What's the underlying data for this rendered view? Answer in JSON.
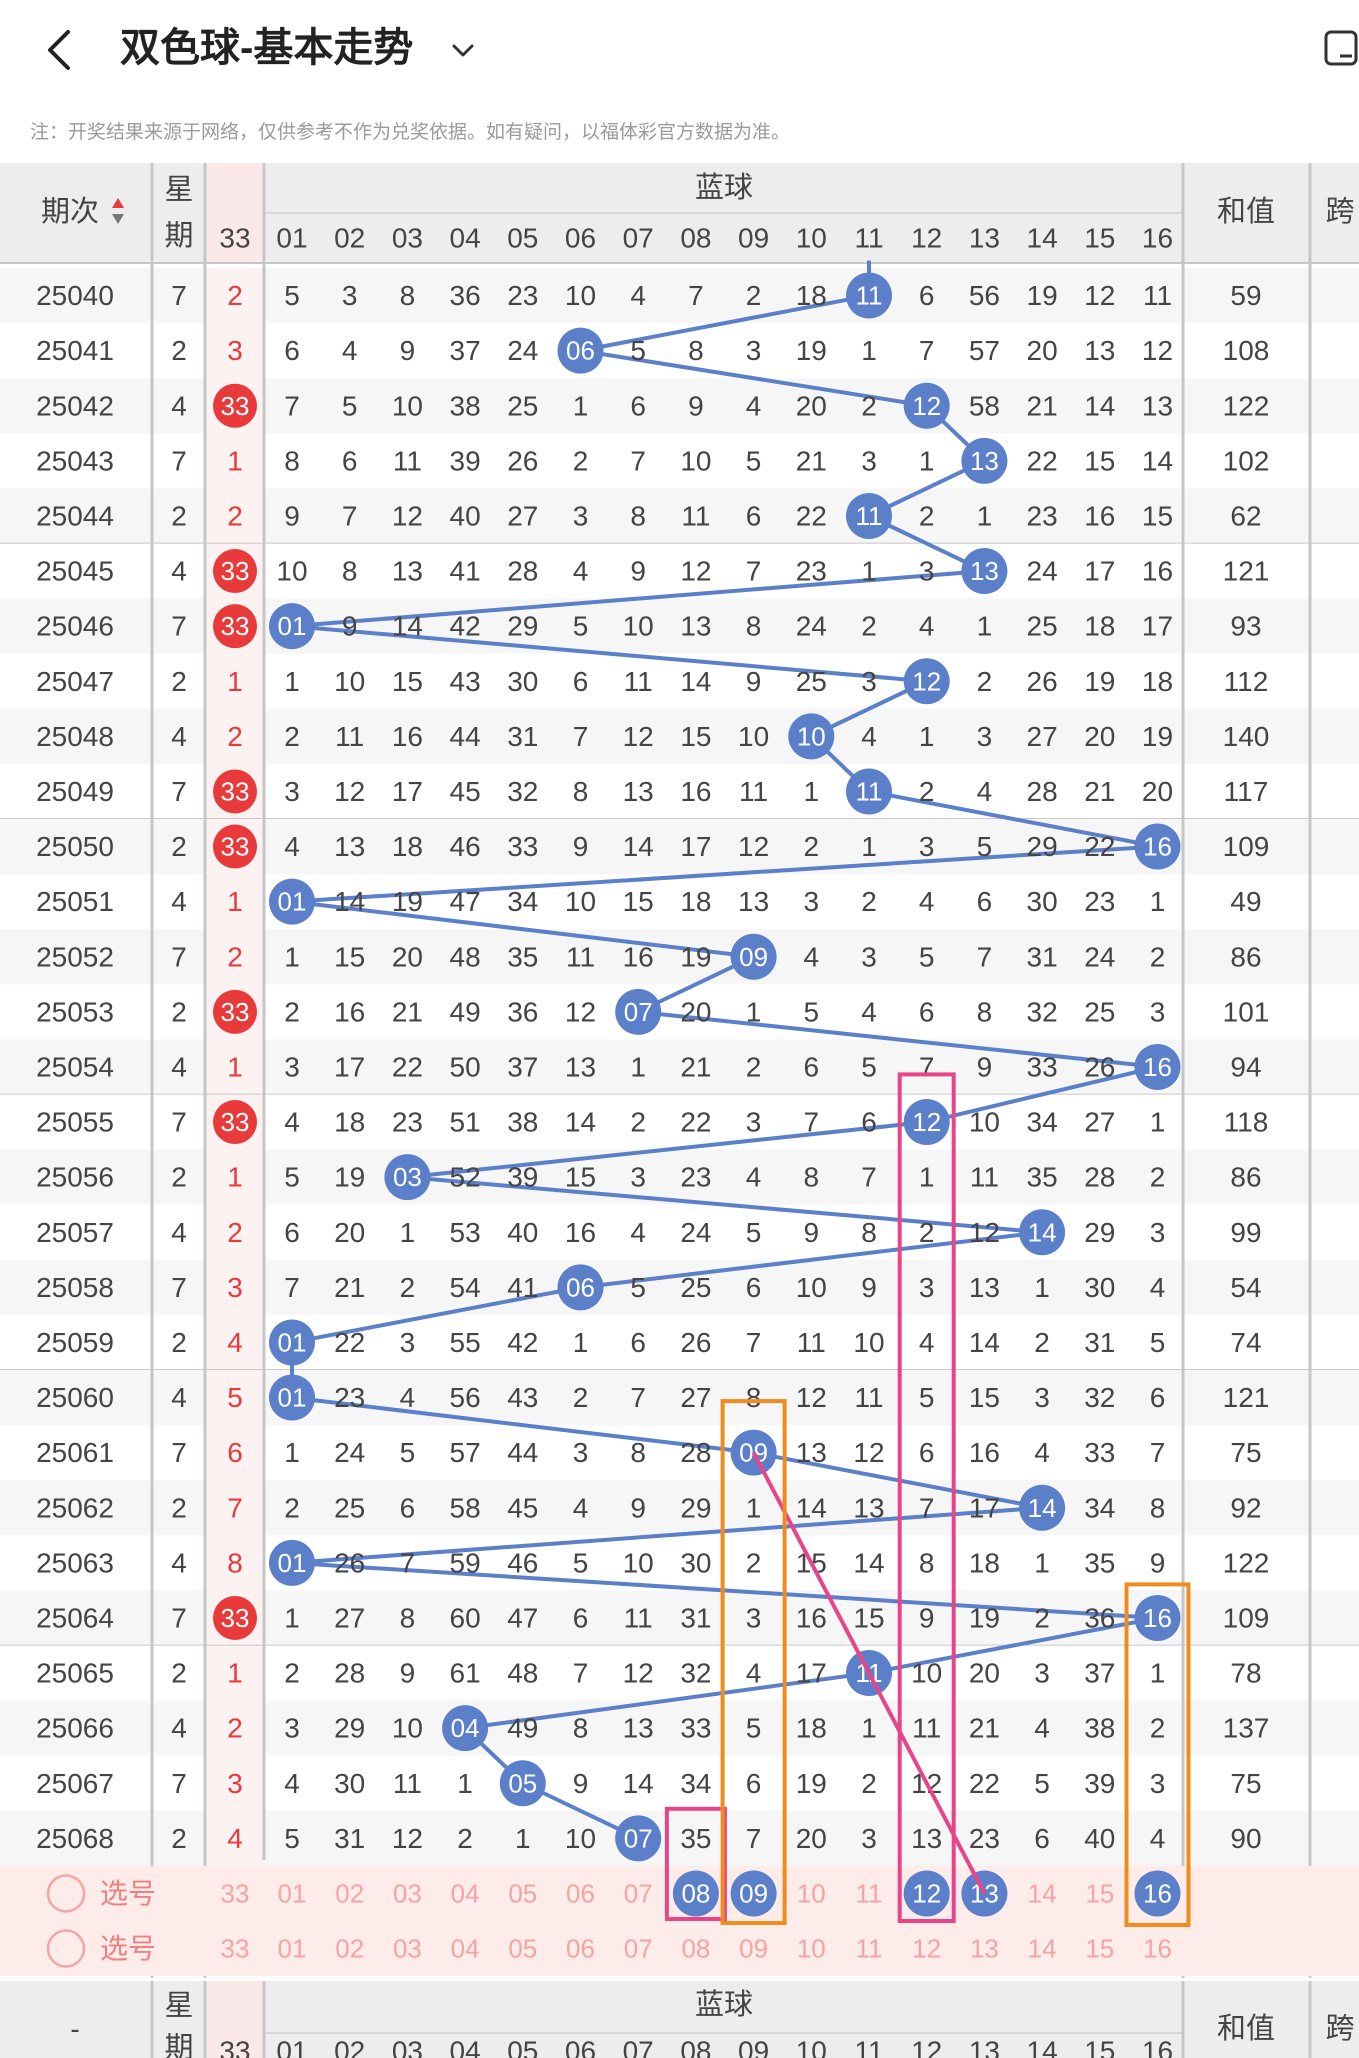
{
  "header": {
    "title": "双色球-基本走势"
  },
  "notice": "注：开奖结果来源于网络，仅供参考不作为兑奖依据。如有疑问，以福体彩官方数据为准。",
  "table": {
    "col_period": "期次",
    "col_week": "星期",
    "col_33": "33",
    "blue_title": "蓝球",
    "col_sum": "和值",
    "col_next": "跨",
    "blue_headers": [
      "01",
      "02",
      "03",
      "04",
      "05",
      "06",
      "07",
      "08",
      "09",
      "10",
      "11",
      "12",
      "13",
      "14",
      "15",
      "16"
    ],
    "footer_period": "-",
    "select_label": "选号"
  },
  "rows": [
    {
      "period": "25040",
      "week": "7",
      "c33": "2",
      "hit33": false,
      "cells": [
        "5",
        "3",
        "8",
        "36",
        "23",
        "10",
        "4",
        "7",
        "2",
        "18",
        "11",
        "6",
        "56",
        "19",
        "12",
        "11"
      ],
      "blue": 11,
      "sum": "59"
    },
    {
      "period": "25041",
      "week": "2",
      "c33": "3",
      "hit33": false,
      "cells": [
        "6",
        "4",
        "9",
        "37",
        "24",
        "06",
        "5",
        "8",
        "3",
        "19",
        "1",
        "7",
        "57",
        "20",
        "13",
        "12"
      ],
      "blue": 6,
      "sum": "108"
    },
    {
      "period": "25042",
      "week": "4",
      "c33": "33",
      "hit33": true,
      "cells": [
        "7",
        "5",
        "10",
        "38",
        "25",
        "1",
        "6",
        "9",
        "4",
        "20",
        "2",
        "12",
        "58",
        "21",
        "14",
        "13"
      ],
      "blue": 12,
      "sum": "122"
    },
    {
      "period": "25043",
      "week": "7",
      "c33": "1",
      "hit33": false,
      "cells": [
        "8",
        "6",
        "11",
        "39",
        "26",
        "2",
        "7",
        "10",
        "5",
        "21",
        "3",
        "1",
        "13",
        "22",
        "15",
        "14"
      ],
      "blue": 13,
      "sum": "102"
    },
    {
      "period": "25044",
      "week": "2",
      "c33": "2",
      "hit33": false,
      "cells": [
        "9",
        "7",
        "12",
        "40",
        "27",
        "3",
        "8",
        "11",
        "6",
        "22",
        "11",
        "2",
        "1",
        "23",
        "16",
        "15"
      ],
      "blue": 11,
      "sum": "62"
    },
    {
      "period": "25045",
      "week": "4",
      "c33": "33",
      "hit33": true,
      "cells": [
        "10",
        "8",
        "13",
        "41",
        "28",
        "4",
        "9",
        "12",
        "7",
        "23",
        "1",
        "3",
        "13",
        "24",
        "17",
        "16"
      ],
      "blue": 13,
      "sum": "121"
    },
    {
      "period": "25046",
      "week": "7",
      "c33": "33",
      "hit33": true,
      "cells": [
        "01",
        "9",
        "14",
        "42",
        "29",
        "5",
        "10",
        "13",
        "8",
        "24",
        "2",
        "4",
        "1",
        "25",
        "18",
        "17"
      ],
      "blue": 1,
      "sum": "93"
    },
    {
      "period": "25047",
      "week": "2",
      "c33": "1",
      "hit33": false,
      "cells": [
        "1",
        "10",
        "15",
        "43",
        "30",
        "6",
        "11",
        "14",
        "9",
        "25",
        "3",
        "12",
        "2",
        "26",
        "19",
        "18"
      ],
      "blue": 12,
      "sum": "112"
    },
    {
      "period": "25048",
      "week": "4",
      "c33": "2",
      "hit33": false,
      "cells": [
        "2",
        "11",
        "16",
        "44",
        "31",
        "7",
        "12",
        "15",
        "10",
        "10",
        "4",
        "1",
        "3",
        "27",
        "20",
        "19"
      ],
      "blue": 10,
      "sum": "140"
    },
    {
      "period": "25049",
      "week": "7",
      "c33": "33",
      "hit33": true,
      "cells": [
        "3",
        "12",
        "17",
        "45",
        "32",
        "8",
        "13",
        "16",
        "11",
        "1",
        "11",
        "2",
        "4",
        "28",
        "21",
        "20"
      ],
      "blue": 11,
      "sum": "117"
    },
    {
      "period": "25050",
      "week": "2",
      "c33": "33",
      "hit33": true,
      "cells": [
        "4",
        "13",
        "18",
        "46",
        "33",
        "9",
        "14",
        "17",
        "12",
        "2",
        "1",
        "3",
        "5",
        "29",
        "22",
        "16"
      ],
      "blue": 16,
      "sum": "109"
    },
    {
      "period": "25051",
      "week": "4",
      "c33": "1",
      "hit33": false,
      "cells": [
        "01",
        "14",
        "19",
        "47",
        "34",
        "10",
        "15",
        "18",
        "13",
        "3",
        "2",
        "4",
        "6",
        "30",
        "23",
        "1"
      ],
      "blue": 1,
      "sum": "49"
    },
    {
      "period": "25052",
      "week": "7",
      "c33": "2",
      "hit33": false,
      "cells": [
        "1",
        "15",
        "20",
        "48",
        "35",
        "11",
        "16",
        "19",
        "09",
        "4",
        "3",
        "5",
        "7",
        "31",
        "24",
        "2"
      ],
      "blue": 9,
      "sum": "86"
    },
    {
      "period": "25053",
      "week": "2",
      "c33": "33",
      "hit33": true,
      "cells": [
        "2",
        "16",
        "21",
        "49",
        "36",
        "12",
        "07",
        "20",
        "1",
        "5",
        "4",
        "6",
        "8",
        "32",
        "25",
        "3"
      ],
      "blue": 7,
      "sum": "101"
    },
    {
      "period": "25054",
      "week": "4",
      "c33": "1",
      "hit33": false,
      "cells": [
        "3",
        "17",
        "22",
        "50",
        "37",
        "13",
        "1",
        "21",
        "2",
        "6",
        "5",
        "7",
        "9",
        "33",
        "26",
        "16"
      ],
      "blue": 16,
      "sum": "94"
    },
    {
      "period": "25055",
      "week": "7",
      "c33": "33",
      "hit33": true,
      "cells": [
        "4",
        "18",
        "23",
        "51",
        "38",
        "14",
        "2",
        "22",
        "3",
        "7",
        "6",
        "12",
        "10",
        "34",
        "27",
        "1"
      ],
      "blue": 12,
      "sum": "118"
    },
    {
      "period": "25056",
      "week": "2",
      "c33": "1",
      "hit33": false,
      "cells": [
        "5",
        "19",
        "03",
        "52",
        "39",
        "15",
        "3",
        "23",
        "4",
        "8",
        "7",
        "1",
        "11",
        "35",
        "28",
        "2"
      ],
      "blue": 3,
      "sum": "86"
    },
    {
      "period": "25057",
      "week": "4",
      "c33": "2",
      "hit33": false,
      "cells": [
        "6",
        "20",
        "1",
        "53",
        "40",
        "16",
        "4",
        "24",
        "5",
        "9",
        "8",
        "2",
        "12",
        "14",
        "29",
        "3"
      ],
      "blue": 14,
      "sum": "99"
    },
    {
      "period": "25058",
      "week": "7",
      "c33": "3",
      "hit33": false,
      "cells": [
        "7",
        "21",
        "2",
        "54",
        "41",
        "06",
        "5",
        "25",
        "6",
        "10",
        "9",
        "3",
        "13",
        "1",
        "30",
        "4"
      ],
      "blue": 6,
      "sum": "54"
    },
    {
      "period": "25059",
      "week": "2",
      "c33": "4",
      "hit33": false,
      "cells": [
        "01",
        "22",
        "3",
        "55",
        "42",
        "1",
        "6",
        "26",
        "7",
        "11",
        "10",
        "4",
        "14",
        "2",
        "31",
        "5"
      ],
      "blue": 1,
      "sum": "74"
    },
    {
      "period": "25060",
      "week": "4",
      "c33": "5",
      "hit33": false,
      "cells": [
        "01",
        "23",
        "4",
        "56",
        "43",
        "2",
        "7",
        "27",
        "8",
        "12",
        "11",
        "5",
        "15",
        "3",
        "32",
        "6"
      ],
      "blue": 1,
      "sum": "121"
    },
    {
      "period": "25061",
      "week": "7",
      "c33": "6",
      "hit33": false,
      "cells": [
        "1",
        "24",
        "5",
        "57",
        "44",
        "3",
        "8",
        "28",
        "09",
        "13",
        "12",
        "6",
        "16",
        "4",
        "33",
        "7"
      ],
      "blue": 9,
      "sum": "75"
    },
    {
      "period": "25062",
      "week": "2",
      "c33": "7",
      "hit33": false,
      "cells": [
        "2",
        "25",
        "6",
        "58",
        "45",
        "4",
        "9",
        "29",
        "1",
        "14",
        "13",
        "7",
        "17",
        "14",
        "34",
        "8"
      ],
      "blue": 14,
      "sum": "92"
    },
    {
      "period": "25063",
      "week": "4",
      "c33": "8",
      "hit33": false,
      "cells": [
        "01",
        "26",
        "7",
        "59",
        "46",
        "5",
        "10",
        "30",
        "2",
        "15",
        "14",
        "8",
        "18",
        "1",
        "35",
        "9"
      ],
      "blue": 1,
      "sum": "122"
    },
    {
      "period": "25064",
      "week": "7",
      "c33": "33",
      "hit33": true,
      "cells": [
        "1",
        "27",
        "8",
        "60",
        "47",
        "6",
        "11",
        "31",
        "3",
        "16",
        "15",
        "9",
        "19",
        "2",
        "36",
        "16"
      ],
      "blue": 16,
      "sum": "109"
    },
    {
      "period": "25065",
      "week": "2",
      "c33": "1",
      "hit33": false,
      "cells": [
        "2",
        "28",
        "9",
        "61",
        "48",
        "7",
        "12",
        "32",
        "4",
        "17",
        "11",
        "10",
        "20",
        "3",
        "37",
        "1"
      ],
      "blue": 11,
      "sum": "78"
    },
    {
      "period": "25066",
      "week": "4",
      "c33": "2",
      "hit33": false,
      "cells": [
        "3",
        "29",
        "10",
        "04",
        "49",
        "8",
        "13",
        "33",
        "5",
        "18",
        "1",
        "11",
        "21",
        "4",
        "38",
        "2"
      ],
      "blue": 4,
      "sum": "137"
    },
    {
      "period": "25067",
      "week": "7",
      "c33": "3",
      "hit33": false,
      "cells": [
        "4",
        "30",
        "11",
        "1",
        "05",
        "9",
        "14",
        "34",
        "6",
        "19",
        "2",
        "12",
        "22",
        "5",
        "39",
        "3"
      ],
      "blue": 5,
      "sum": "75"
    },
    {
      "period": "25068",
      "week": "2",
      "c33": "4",
      "hit33": false,
      "cells": [
        "5",
        "31",
        "12",
        "2",
        "1",
        "10",
        "07",
        "35",
        "7",
        "20",
        "3",
        "13",
        "23",
        "6",
        "40",
        "4"
      ],
      "blue": 7,
      "sum": "90"
    }
  ],
  "select_rows": [
    {
      "label": "选号",
      "c33": "33",
      "selected": [
        8,
        9,
        12,
        13,
        16
      ]
    },
    {
      "label": "选号",
      "c33": "33",
      "selected": []
    }
  ],
  "colors": {
    "blue_ball": "#5b7fc9",
    "red_ball": "#e83a3a",
    "pink_box": "#e8448a",
    "orange_box": "#f08c1e",
    "select_bg": "#fdecea"
  }
}
